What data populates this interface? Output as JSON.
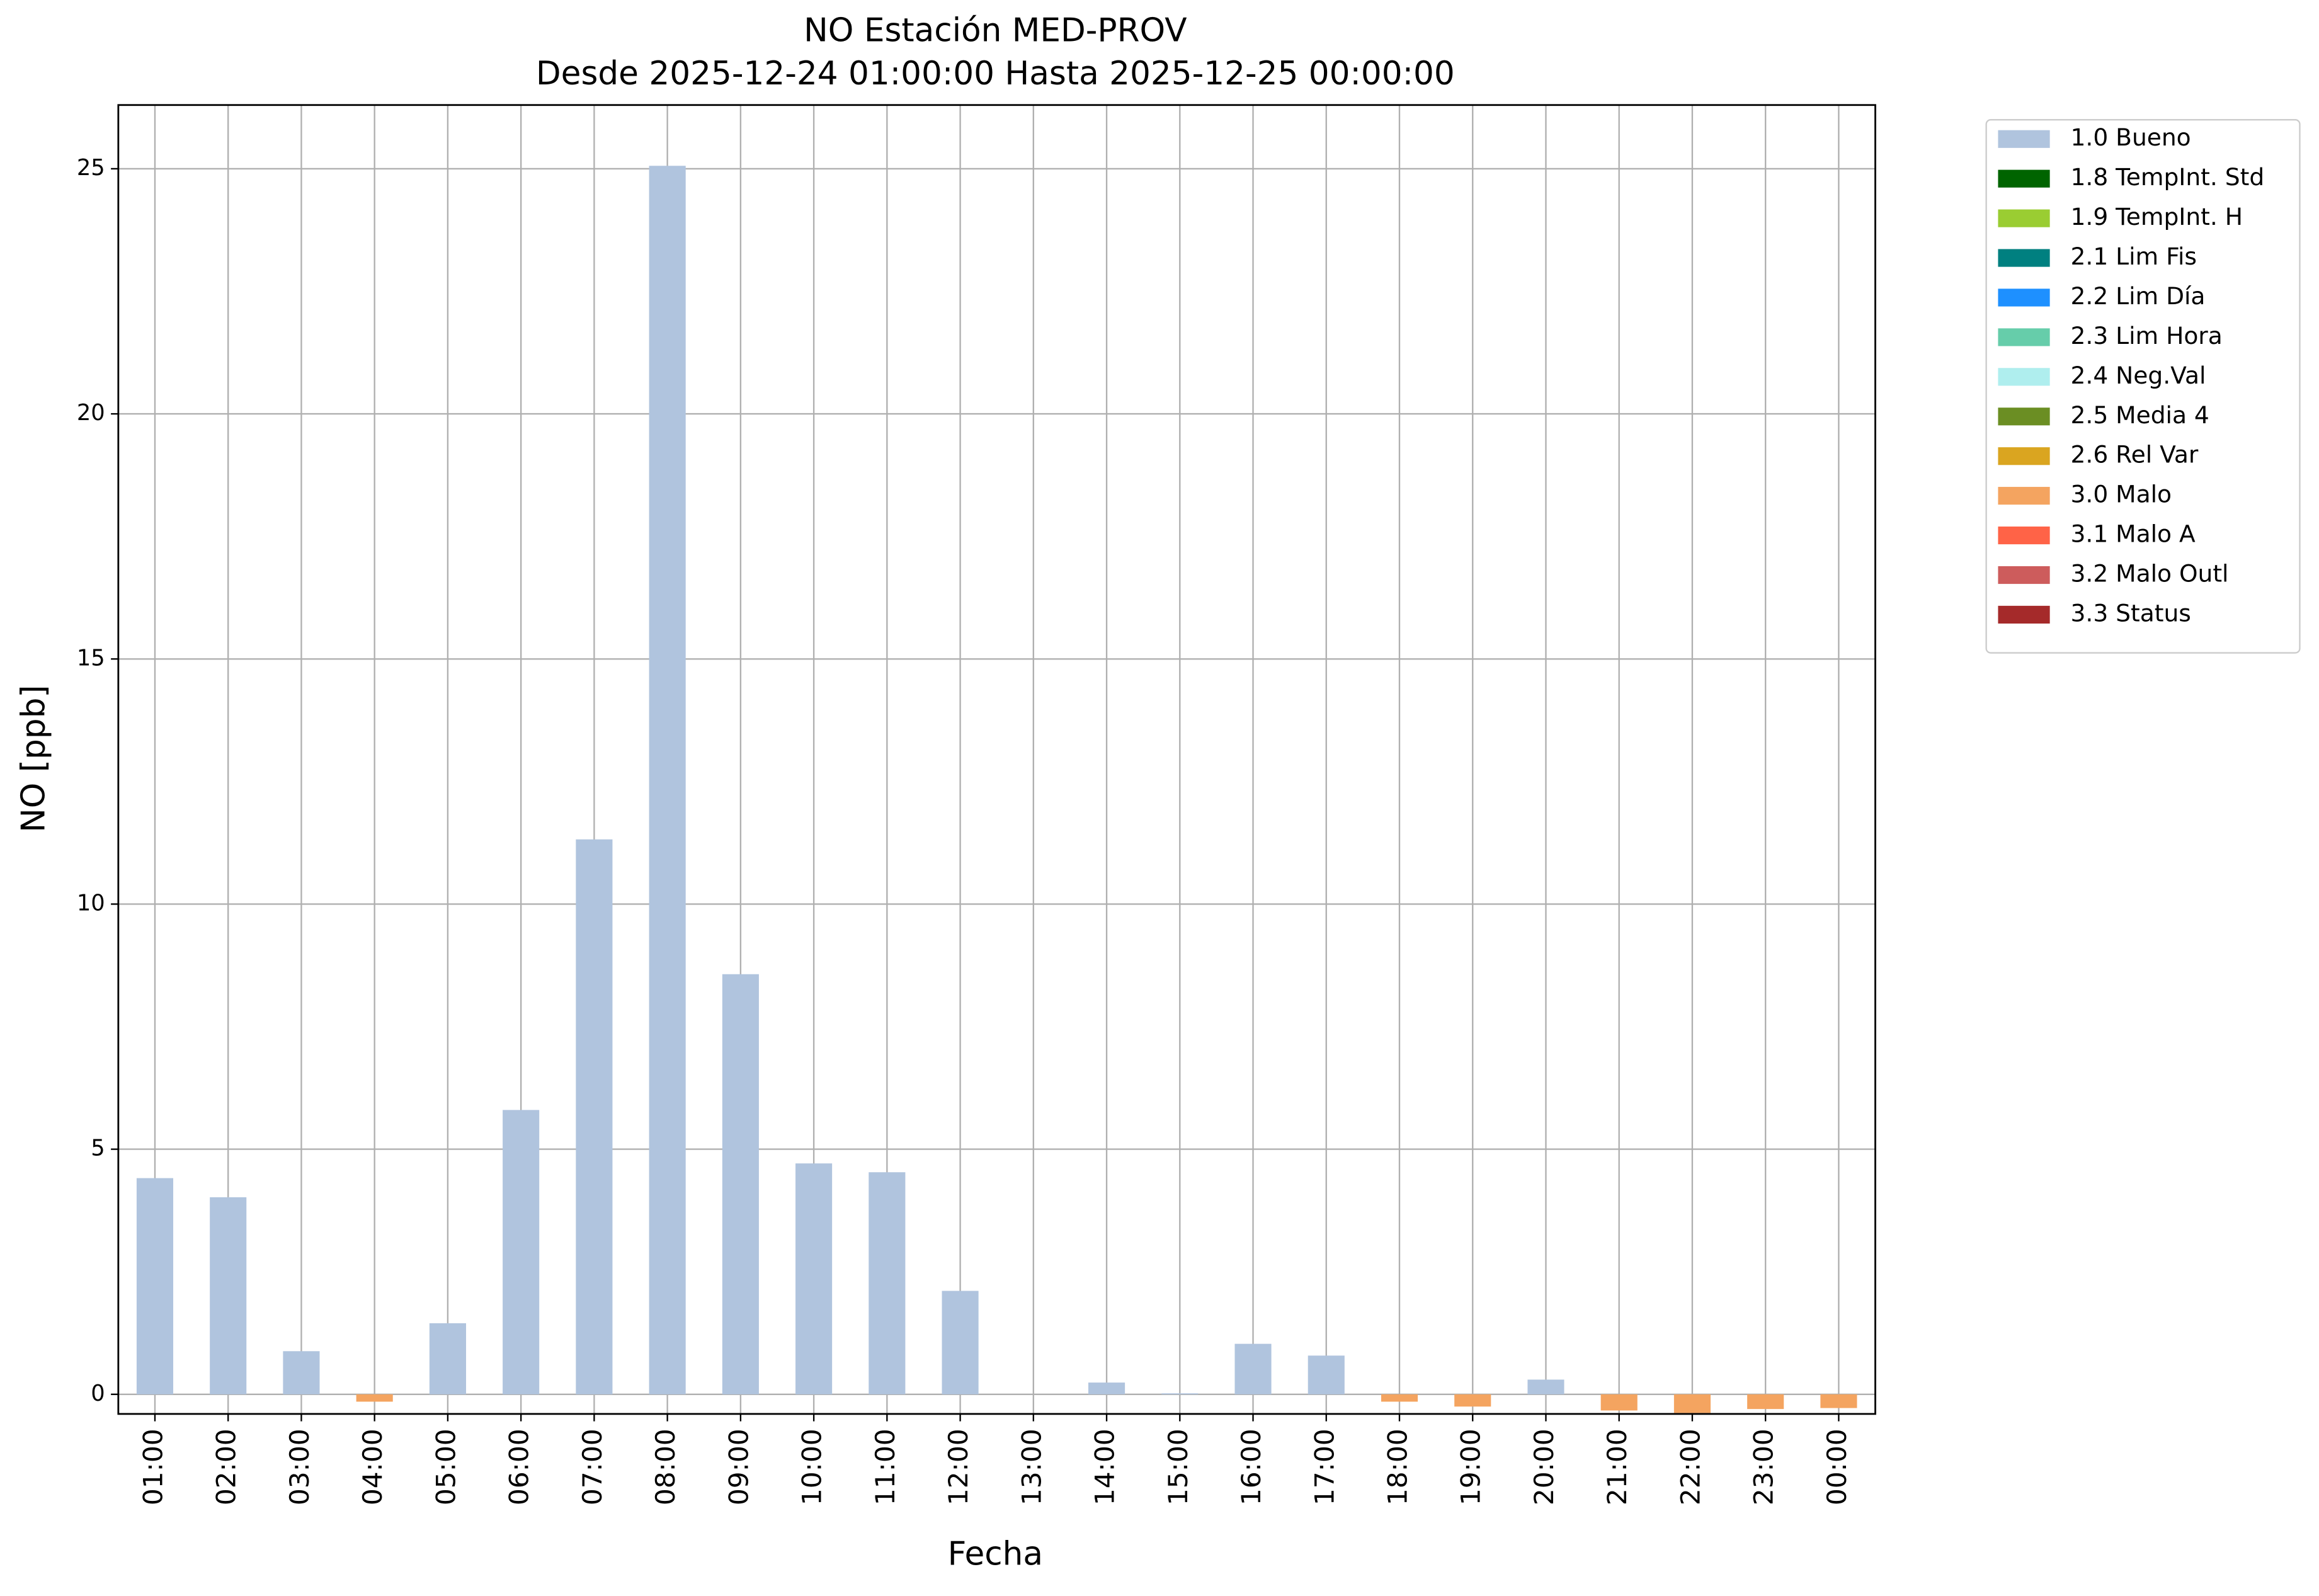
{
  "chart_data": {
    "type": "bar",
    "title": "NO Estación MED-PROV",
    "subtitle": "Desde 2025-12-24 01:00:00 Hasta 2025-12-25 00:00:00",
    "x_label": "Fecha",
    "y_label": "NO [ppb]",
    "categories": [
      "01:00",
      "02:00",
      "03:00",
      "04:00",
      "05:00",
      "06:00",
      "07:00",
      "08:00",
      "09:00",
      "10:00",
      "11:00",
      "12:00",
      "13:00",
      "14:00",
      "15:00",
      "16:00",
      "17:00",
      "18:00",
      "19:00",
      "20:00",
      "21:00",
      "22:00",
      "23:00",
      "00:00"
    ],
    "ylim": [
      -0.4,
      26.3
    ],
    "yticks": [
      0,
      5,
      10,
      15,
      20,
      25
    ],
    "grid": true,
    "legend": "outside-right",
    "series": [
      {
        "name": "1.0 Bueno",
        "color": "#b0c4de",
        "values": [
          4.41,
          4.02,
          0.88,
          null,
          1.45,
          5.8,
          11.32,
          25.06,
          8.57,
          4.71,
          4.53,
          2.11,
          null,
          0.24,
          0.02,
          1.03,
          0.79,
          null,
          null,
          0.3,
          null,
          null,
          null,
          null
        ]
      },
      {
        "name": "1.8 TempInt. Std",
        "color": "#006400",
        "values": [
          null,
          null,
          null,
          null,
          null,
          null,
          null,
          null,
          null,
          null,
          null,
          null,
          null,
          null,
          null,
          null,
          null,
          null,
          null,
          null,
          null,
          null,
          null,
          null
        ]
      },
      {
        "name": "1.9 TempInt. H",
        "color": "#9acd32",
        "values": [
          null,
          null,
          null,
          null,
          null,
          null,
          null,
          null,
          null,
          null,
          null,
          null,
          null,
          null,
          null,
          null,
          null,
          null,
          null,
          null,
          null,
          null,
          null,
          null
        ]
      },
      {
        "name": "2.1 Lim Fis",
        "color": "#008080",
        "values": [
          null,
          null,
          null,
          null,
          null,
          null,
          null,
          null,
          null,
          null,
          null,
          null,
          null,
          null,
          null,
          null,
          null,
          null,
          null,
          null,
          null,
          null,
          null,
          null
        ]
      },
      {
        "name": "2.2 Lim Día",
        "color": "#1e90ff",
        "values": [
          null,
          null,
          null,
          null,
          null,
          null,
          null,
          null,
          null,
          null,
          null,
          null,
          null,
          null,
          null,
          null,
          null,
          null,
          null,
          null,
          null,
          null,
          null,
          null
        ]
      },
      {
        "name": "2.3 Lim Hora",
        "color": "#66cdaa",
        "values": [
          null,
          null,
          null,
          null,
          null,
          null,
          null,
          null,
          null,
          null,
          null,
          null,
          null,
          null,
          null,
          null,
          null,
          null,
          null,
          null,
          null,
          null,
          null,
          null
        ]
      },
      {
        "name": "2.4 Neg.Val",
        "color": "#afeeee",
        "values": [
          null,
          null,
          null,
          null,
          null,
          null,
          null,
          null,
          null,
          null,
          null,
          null,
          null,
          null,
          null,
          null,
          null,
          null,
          null,
          null,
          null,
          null,
          null,
          null
        ]
      },
      {
        "name": "2.5 Media 4",
        "color": "#6b8e23",
        "values": [
          null,
          null,
          null,
          null,
          null,
          null,
          null,
          null,
          null,
          null,
          null,
          null,
          null,
          null,
          null,
          null,
          null,
          null,
          null,
          null,
          null,
          null,
          null,
          null
        ]
      },
      {
        "name": "2.6 Rel Var",
        "color": "#daa520",
        "values": [
          null,
          null,
          null,
          null,
          null,
          null,
          null,
          null,
          null,
          null,
          null,
          null,
          null,
          null,
          null,
          null,
          null,
          null,
          null,
          null,
          null,
          null,
          null,
          null
        ]
      },
      {
        "name": "3.0 Malo",
        "color": "#f4a460",
        "values": [
          null,
          null,
          null,
          -0.15,
          null,
          null,
          null,
          null,
          null,
          null,
          null,
          null,
          null,
          null,
          null,
          null,
          null,
          -0.15,
          -0.25,
          null,
          -0.33,
          -0.38,
          -0.3,
          -0.28
        ]
      },
      {
        "name": "3.1 Malo A",
        "color": "#ff6347",
        "values": [
          null,
          null,
          null,
          null,
          null,
          null,
          null,
          null,
          null,
          null,
          null,
          null,
          null,
          null,
          null,
          null,
          null,
          null,
          null,
          null,
          null,
          null,
          null,
          null
        ]
      },
      {
        "name": "3.2 Malo Outl",
        "color": "#cd5c5c",
        "values": [
          null,
          null,
          null,
          null,
          null,
          null,
          null,
          null,
          null,
          null,
          null,
          null,
          null,
          null,
          null,
          null,
          null,
          null,
          null,
          null,
          null,
          null,
          null,
          null
        ]
      },
      {
        "name": "3.3 Status",
        "color": "#a52a2a",
        "values": [
          null,
          null,
          null,
          null,
          null,
          null,
          null,
          null,
          null,
          null,
          null,
          null,
          null,
          null,
          null,
          null,
          null,
          null,
          null,
          null,
          null,
          null,
          null,
          null
        ]
      }
    ]
  }
}
